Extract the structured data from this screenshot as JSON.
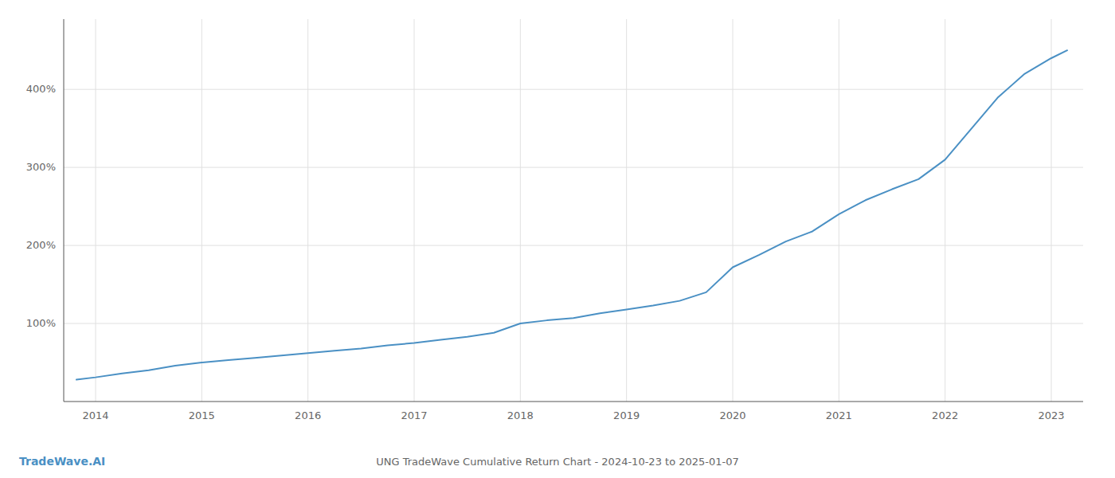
{
  "chart_data": {
    "type": "line",
    "title": "UNG TradeWave Cumulative Return Chart - 2024-10-23 to 2025-01-07",
    "annotations": [
      "TradeWave.AI"
    ],
    "color": "#4a90c4",
    "x": [
      2013.82,
      2014.0,
      2014.25,
      2014.5,
      2014.75,
      2015.0,
      2015.25,
      2015.5,
      2015.75,
      2016.0,
      2016.25,
      2016.5,
      2016.75,
      2017.0,
      2017.25,
      2017.5,
      2017.75,
      2018.0,
      2018.25,
      2018.5,
      2018.75,
      2019.0,
      2019.25,
      2019.5,
      2019.75,
      2020.0,
      2020.25,
      2020.5,
      2020.75,
      2021.0,
      2021.25,
      2021.5,
      2021.75,
      2022.0,
      2022.25,
      2022.5,
      2022.75,
      2023.0,
      2023.15
    ],
    "values": [
      28,
      31,
      36,
      40,
      46,
      50,
      53,
      56,
      59,
      62,
      65,
      68,
      72,
      75,
      79,
      83,
      88,
      100,
      104,
      107,
      113,
      118,
      123,
      129,
      140,
      172,
      188,
      205,
      218,
      240,
      258,
      272,
      285,
      310,
      350,
      390,
      420,
      440,
      450
    ],
    "xlim": [
      2013.7,
      2023.3
    ],
    "xticks": [
      2014,
      2015,
      2016,
      2017,
      2018,
      2019,
      2020,
      2021,
      2022,
      2023
    ],
    "ylim": [
      0,
      490
    ],
    "yticks": [
      {
        "value": 100,
        "label": "100%"
      },
      {
        "value": 200,
        "label": "200%"
      },
      {
        "value": 300,
        "label": "300%"
      },
      {
        "value": 400,
        "label": "400%"
      }
    ],
    "grid": true
  }
}
